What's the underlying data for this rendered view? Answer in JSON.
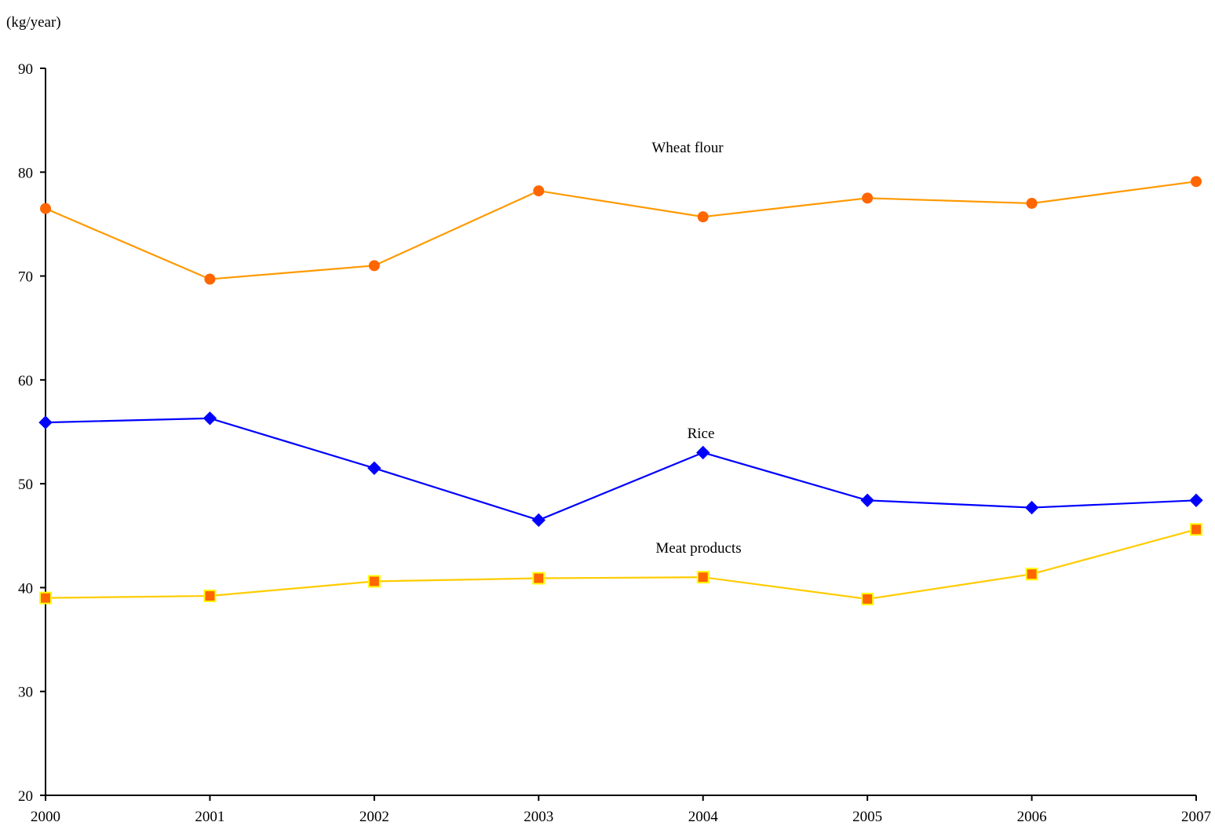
{
  "chart_data": {
    "type": "line",
    "title": "",
    "xlabel": "",
    "ylabel": "(kg/year)",
    "x": [
      "2000",
      "2001",
      "2002",
      "2003",
      "2004",
      "2005",
      "2006",
      "2007"
    ],
    "xlim": [
      2000,
      2007
    ],
    "ylim": [
      20,
      90
    ],
    "yticks": [
      "20",
      "30",
      "40",
      "50",
      "60",
      "70",
      "80",
      "90"
    ],
    "grid": false,
    "legend": "none",
    "series": [
      {
        "name": "Wheat flour",
        "marker": "circle",
        "line_color": "#FF9900",
        "marker_color": "#FF6600",
        "marker_edge": "#FF6600",
        "values": [
          76.5,
          69.7,
          71.0,
          78.2,
          75.7,
          77.5,
          77.0,
          79.1
        ]
      },
      {
        "name": "Rice",
        "marker": "diamond",
        "line_color": "#0000FF",
        "marker_color": "#0000FF",
        "marker_edge": "#0000FF",
        "values": [
          55.9,
          56.3,
          51.5,
          46.5,
          53.0,
          48.4,
          47.7,
          48.4
        ]
      },
      {
        "name": "Meat products",
        "marker": "square",
        "line_color": "#FFCC00",
        "marker_color": "#FF6600",
        "marker_edge": "#FFFF00",
        "values": [
          39.0,
          39.2,
          40.6,
          40.9,
          41.0,
          38.9,
          41.3,
          45.6
        ]
      }
    ]
  }
}
